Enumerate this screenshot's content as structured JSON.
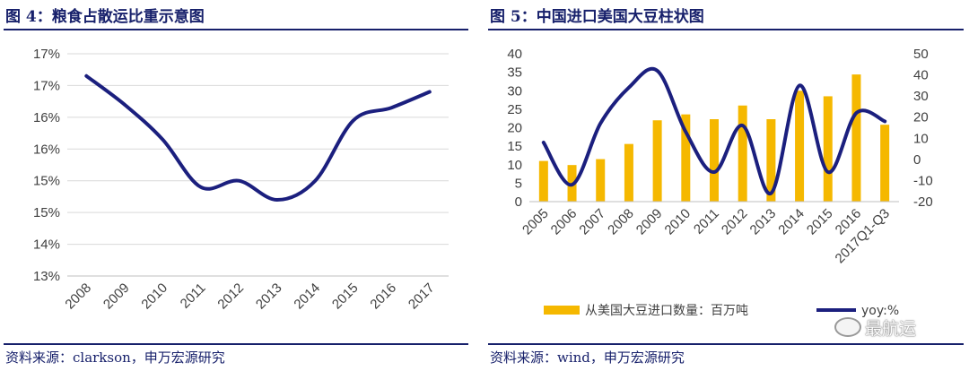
{
  "left_panel": {
    "title": "图 4：粮食占散运比重示意图",
    "source": "资料来源：clarkson，申万宏源研究"
  },
  "right_panel": {
    "title": "图 5：中国进口美国大豆柱状图",
    "source": "资料来源：wind，申万宏源研究"
  },
  "watermark": {
    "text": "最航运",
    "icon": "wechat-icon"
  },
  "colors": {
    "line": "#1b1f7e",
    "bar": "#f5b800",
    "title": "#17206b",
    "axis": "#404040",
    "grid": "#d9d9d9"
  },
  "chart_data": [
    {
      "type": "line",
      "title": "",
      "xlabel": "",
      "ylabel": "",
      "categories": [
        "2008",
        "2009",
        "2010",
        "2011",
        "2012",
        "2013",
        "2014",
        "2015",
        "2016",
        "2017"
      ],
      "y_tick_labels": [
        "13%",
        "14%",
        "15%",
        "15%",
        "16%",
        "16%",
        "17%",
        "17%"
      ],
      "ylim": [
        13.0,
        16.5
      ],
      "y_step": 0.5,
      "series": [
        {
          "values": [
            16.15,
            15.7,
            15.15,
            14.4,
            14.5,
            14.2,
            14.5,
            15.45,
            15.65,
            15.9
          ]
        }
      ],
      "grid": true,
      "legend": "none"
    },
    {
      "type": "bar+line",
      "title": "",
      "xlabel": "",
      "ylabel": "",
      "categories": [
        "2005",
        "2006",
        "2007",
        "2008",
        "2009",
        "2010",
        "2011",
        "2012",
        "2013",
        "2014",
        "2015",
        "2016",
        "2017Q1-Q3"
      ],
      "ylim_left": [
        0,
        40
      ],
      "y_left_ticks": [
        0,
        5,
        10,
        15,
        20,
        25,
        30,
        35,
        40
      ],
      "ylim_right": [
        -20,
        50
      ],
      "y_right_ticks": [
        -20,
        -10,
        0,
        10,
        20,
        30,
        40,
        50
      ],
      "series": [
        {
          "name": "从美国大豆进口数量：百万吨",
          "type": "bar",
          "axis": "left",
          "values": [
            11.0,
            9.9,
            11.5,
            15.6,
            22.0,
            23.6,
            22.3,
            26.0,
            22.3,
            30.0,
            28.5,
            34.4,
            20.8
          ]
        },
        {
          "name": "yoy:%",
          "type": "line",
          "axis": "right",
          "values": [
            8,
            -12,
            17,
            34,
            42,
            13,
            -6,
            16,
            -16,
            35,
            -6,
            22,
            18
          ]
        }
      ],
      "grid": false,
      "legend": "bottom"
    }
  ]
}
